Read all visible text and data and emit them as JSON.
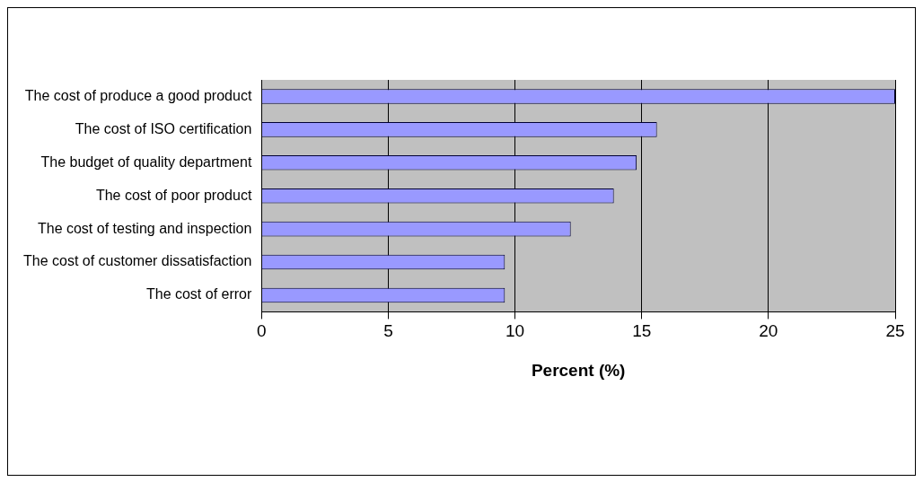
{
  "chart_data": {
    "type": "bar",
    "orientation": "horizontal",
    "xlabel": "Percent (%)",
    "categories": [
      "The cost of produce a good product",
      "The cost of ISO certification",
      "The budget of quality department",
      "The cost of poor product",
      "The cost of testing and inspection",
      "The cost of customer dissatisfaction",
      "The cost of error"
    ],
    "values": [
      25,
      15.6,
      14.8,
      13.9,
      12.2,
      9.6,
      9.6
    ],
    "color": "#9999ff",
    "xlim": [
      0,
      25
    ],
    "xticks": [
      0,
      5,
      10,
      15,
      20,
      25
    ],
    "grid": "x",
    "legend": false
  }
}
